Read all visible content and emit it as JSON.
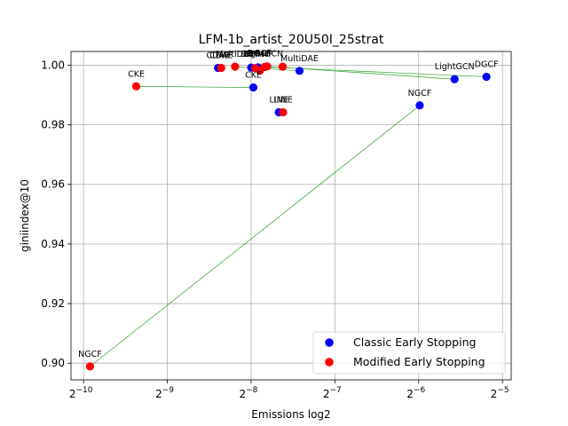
{
  "chart_data": {
    "type": "scatter",
    "title": "LFM-1b_artist_20U50I_25strat",
    "xlabel": "Emissions log2",
    "ylabel": "giniindex@10",
    "x_scale": "log2",
    "xlim": [
      0.00088,
      0.0336
    ],
    "ylim": [
      0.8944,
      1.0046
    ],
    "x_ticks": [
      {
        "value": 0.0009765625,
        "base": "2",
        "exp": "−10"
      },
      {
        "value": 0.001953125,
        "base": "2",
        "exp": "−9"
      },
      {
        "value": 0.00390625,
        "base": "2",
        "exp": "−8"
      },
      {
        "value": 0.0078125,
        "base": "2",
        "exp": "−7"
      },
      {
        "value": 0.015625,
        "base": "2",
        "exp": "−6"
      },
      {
        "value": 0.03125,
        "base": "2",
        "exp": "−5"
      }
    ],
    "y_ticks": [
      "0.90",
      "0.92",
      "0.94",
      "0.96",
      "0.98",
      "1.00"
    ],
    "grid": true,
    "legend_position": "lower-right",
    "series": [
      {
        "name": "Classic Early Stopping",
        "color": "#0000ff",
        "points": [
          {
            "label": "CDAE",
            "x": 0.00297,
            "y": 0.9991
          },
          {
            "label": "",
            "x": 0.00391,
            "y": 0.9992
          },
          {
            "label": "",
            "x": 0.00413,
            "y": 0.9993
          },
          {
            "label": "CKE",
            "x": 0.00398,
            "y": 0.9925
          },
          {
            "label": "LINE",
            "x": 0.00491,
            "y": 0.9842
          },
          {
            "label": "MultiDAE",
            "x": 0.00583,
            "y": 0.9981
          },
          {
            "label": "NGCF",
            "x": 0.01576,
            "y": 0.9865
          },
          {
            "label": "LightGCN",
            "x": 0.02103,
            "y": 0.9953
          },
          {
            "label": "DGCF",
            "x": 0.02737,
            "y": 0.9961
          }
        ]
      },
      {
        "name": "Modified Early Stopping",
        "color": "#ff0000",
        "points": [
          {
            "label": "CDAE",
            "x": 0.00305,
            "y": 0.9991
          },
          {
            "label": "MultiDAE",
            "x": 0.00342,
            "y": 0.9995
          },
          {
            "label": "",
            "x": 0.00404,
            "y": 0.999
          },
          {
            "label": "",
            "x": 0.0042,
            "y": 0.9982
          },
          {
            "label": "",
            "x": 0.00436,
            "y": 0.9994
          },
          {
            "label": "",
            "x": 0.00446,
            "y": 0.9996
          },
          {
            "label": "",
            "x": 0.00507,
            "y": 0.9995
          },
          {
            "label": "CKE",
            "x": 0.00151,
            "y": 0.9929
          },
          {
            "label": "LINE",
            "x": 0.00509,
            "y": 0.9842
          },
          {
            "label": "NGCF",
            "x": 0.00103,
            "y": 0.8989
          }
        ]
      }
    ],
    "annotation_clusters": [
      {
        "text": "BPRMF",
        "x": 0.00403,
        "y": 0.9995
      },
      {
        "text": "BPRMF",
        "x": 0.00416,
        "y": 0.9995
      },
      {
        "text": "LightGCN",
        "x": 0.00432,
        "y": 0.9997
      },
      {
        "text": "DGCF",
        "x": 0.00418,
        "y": 0.9999
      }
    ],
    "connections": [
      {
        "from": [
          0.00297,
          0.9991
        ],
        "to": [
          0.00305,
          0.9991
        ]
      },
      {
        "from": [
          0.00583,
          0.9981
        ],
        "to": [
          0.00342,
          0.9995
        ]
      },
      {
        "from": [
          0.00398,
          0.9925
        ],
        "to": [
          0.00151,
          0.9929
        ]
      },
      {
        "from": [
          0.00491,
          0.9842
        ],
        "to": [
          0.00509,
          0.9842
        ]
      },
      {
        "from": [
          0.01576,
          0.9865
        ],
        "to": [
          0.00103,
          0.8989
        ]
      },
      {
        "from": [
          0.02103,
          0.9953
        ],
        "to": [
          0.00446,
          0.9996
        ]
      },
      {
        "from": [
          0.02737,
          0.9961
        ],
        "to": [
          0.00436,
          0.9994
        ]
      },
      {
        "from": [
          0.00391,
          0.9992
        ],
        "to": [
          0.00404,
          0.999
        ]
      },
      {
        "from": [
          0.00413,
          0.9993
        ],
        "to": [
          0.0042,
          0.9982
        ]
      }
    ],
    "connection_color": "#2ca02c"
  }
}
